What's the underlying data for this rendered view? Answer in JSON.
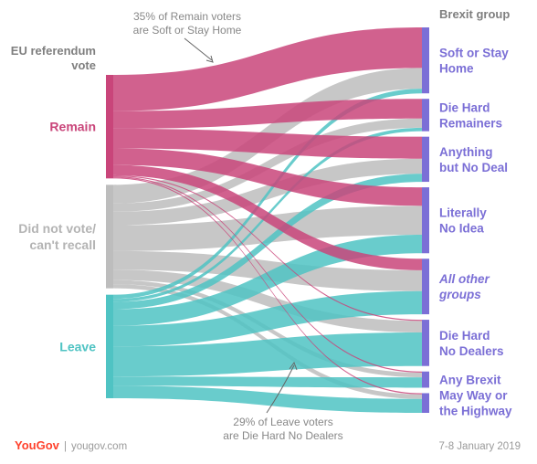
{
  "chart_data": {
    "type": "sankey",
    "title_left": "EU referendum vote",
    "title_right": "Brexit group",
    "sources": [
      {
        "name": "Remain",
        "color": "#c9457a"
      },
      {
        "name": "Did not vote/ can't recall",
        "color": "#bdbdbd"
      },
      {
        "name": "Leave",
        "color": "#4fc3c3"
      }
    ],
    "targets": [
      {
        "name": "Soft or Stay Home"
      },
      {
        "name": "Die Hard Remainers"
      },
      {
        "name": "Anything but No Deal"
      },
      {
        "name": "Literally No Idea"
      },
      {
        "name": "All other groups",
        "italic": true
      },
      {
        "name": "Die Hard No Dealers"
      },
      {
        "name": "Any Brexit"
      },
      {
        "name": "May Way or the Highway"
      }
    ],
    "flows": {
      "Remain": [
        35,
        17,
        19,
        16,
        10,
        1,
        1,
        1
      ],
      "Did not vote/ can't recall": [
        18,
        8,
        13,
        25,
        18,
        10,
        4,
        4
      ],
      "Leave": [
        4,
        3,
        7,
        16,
        20,
        29,
        9,
        12
      ]
    },
    "annotations": [
      {
        "text": "35% of Remain voters are Soft or Stay Home",
        "lines": [
          "35% of Remain voters",
          "are Soft or Stay Home"
        ]
      },
      {
        "text": "29% of Leave voters are Die Hard No Dealers",
        "lines": [
          "29% of Leave voters",
          "are Die Hard No Dealers"
        ]
      }
    ],
    "target_color": "#7b6fd6"
  },
  "header": {
    "left_title_lines": [
      "EU referendum",
      "vote"
    ],
    "right_title": "Brexit group"
  },
  "source_label_lines": {
    "Remain": [
      "Remain"
    ],
    "Did not vote/ can't recall": [
      "Did not vote/",
      "can't recall"
    ],
    "Leave": [
      "Leave"
    ]
  },
  "target_label_lines": {
    "Soft or Stay Home": [
      "Soft or Stay",
      "Home"
    ],
    "Die Hard Remainers": [
      "Die Hard",
      "Remainers"
    ],
    "Anything but No Deal": [
      "Anything",
      "but No Deal"
    ],
    "Literally No Idea": [
      "Literally",
      "No Idea"
    ],
    "All other groups": [
      "All other",
      "groups"
    ],
    "Die Hard No Dealers": [
      "Die Hard",
      "No Dealers"
    ],
    "Any Brexit": [
      "Any Brexit"
    ],
    "May Way or the Highway": [
      "May Way or",
      "the Highway"
    ]
  },
  "footer": {
    "brand_you": "You",
    "brand_gov": "Gov",
    "site": "yougov.com",
    "date": "7-8 January 2019"
  }
}
